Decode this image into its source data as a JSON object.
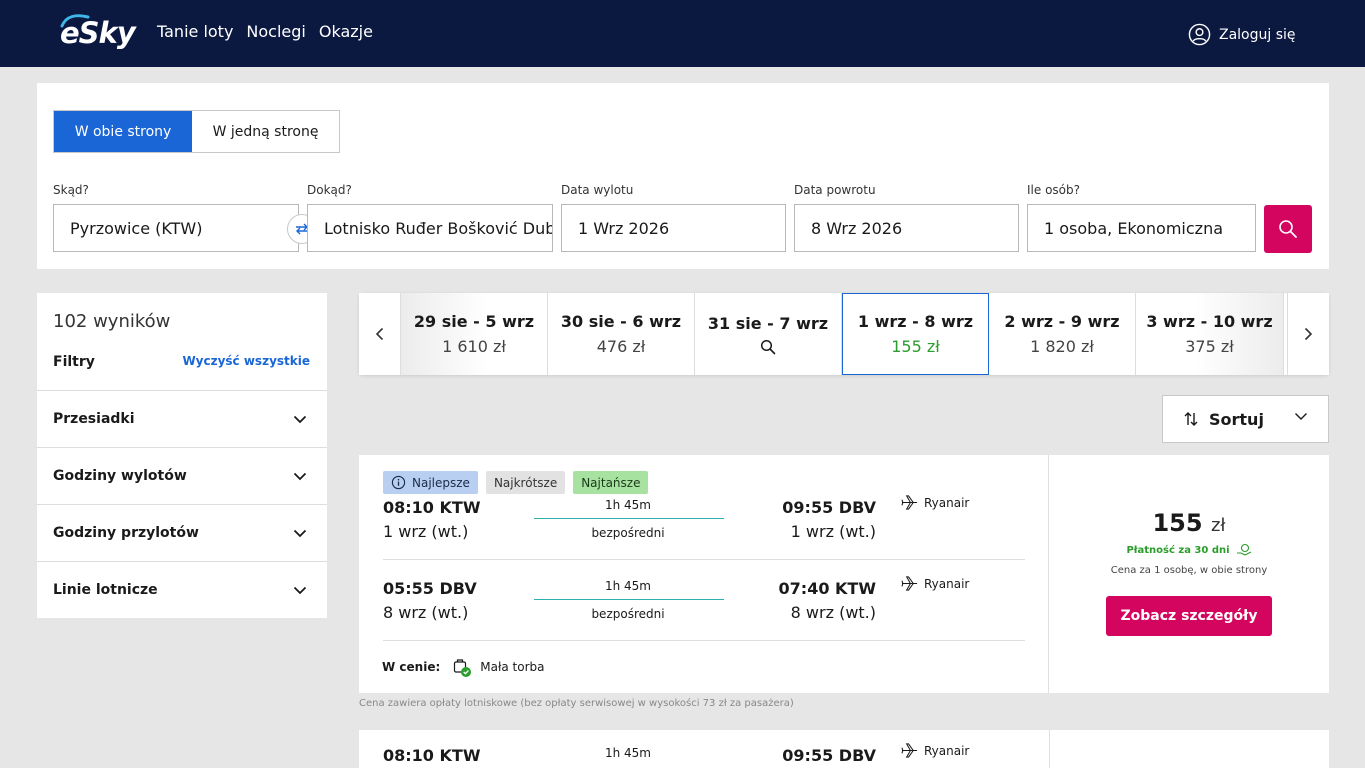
{
  "header": {
    "logo": "eSky",
    "nav": [
      "Tanie loty",
      "Noclegi",
      "Okazje"
    ],
    "login_label": "Zaloguj się",
    "login_icon": "user-circle-icon"
  },
  "search": {
    "trip_types": {
      "round": "W obie strony",
      "oneway": "W jedną stronę"
    },
    "from": {
      "label": "Skąd?",
      "value": "Pyrzowice (KTW)"
    },
    "to": {
      "label": "Dokąd?",
      "value": "Lotnisko Ruđer Bošković Dubrovnik"
    },
    "depart": {
      "label": "Data wylotu",
      "value": "1 Wrz 2026"
    },
    "return": {
      "label": "Data powrotu",
      "value": "8 Wrz 2026"
    },
    "pax": {
      "label": "Ile osób?",
      "value": "1 osoba, Ekonomiczna"
    },
    "accent": "#d4055f"
  },
  "filters": {
    "count": "102 wyników",
    "title": "Filtry",
    "clear": "Wyczyść wszystkie",
    "items": [
      "Przesiadki",
      "Godziny wylotów",
      "Godziny przylotów",
      "Linie lotnicze"
    ]
  },
  "carousel": {
    "dates": [
      {
        "range": "29 sie - 5 wrz",
        "price": "1 610 zł"
      },
      {
        "range": "30 sie - 6 wrz",
        "price": "476 zł"
      },
      {
        "range": "31 sie - 7 wrz",
        "price": ""
      },
      {
        "range": "1 wrz - 8 wrz",
        "price": "155 zł"
      },
      {
        "range": "2 wrz - 9 wrz",
        "price": "1 820 zł"
      },
      {
        "range": "3 wrz - 10 wrz",
        "price": "375 zł"
      }
    ]
  },
  "sort": {
    "label": "Sortuj"
  },
  "result": {
    "badges": {
      "best": "Najlepsze",
      "short": "Najkrótsze",
      "cheap": "Najtańsze"
    },
    "outbound": {
      "dep_time": "08:10 KTW",
      "dep_date": "1 wrz (wt.)",
      "duration": "1h 45m",
      "stops": "bezpośredni",
      "arr_time": "09:55 DBV",
      "arr_date": "1 wrz (wt.)",
      "airline": "Ryanair"
    },
    "inbound": {
      "dep_time": "05:55 DBV",
      "dep_date": "8 wrz (wt.)",
      "duration": "1h 45m",
      "stops": "bezpośredni",
      "arr_time": "07:40 KTW",
      "arr_date": "8 wrz (wt.)",
      "airline": "Ryanair"
    },
    "included_label": "W cenie:",
    "included_item": "Mała torba",
    "price": "155",
    "currency": "zł",
    "pay30": "Płatność za 30 dni",
    "per_person": "Cena za 1 osobę, w obie strony",
    "details_btn": "Zobacz szczegóły",
    "footnote": "Cena zawiera opłaty lotniskowe (bez opłaty serwisowej w wysokości 73 zł za pasażera)"
  },
  "result2": {
    "dep_time": "08:10 KTW",
    "duration": "1h 45m",
    "arr_time": "09:55 DBV",
    "airline": "Ryanair"
  }
}
